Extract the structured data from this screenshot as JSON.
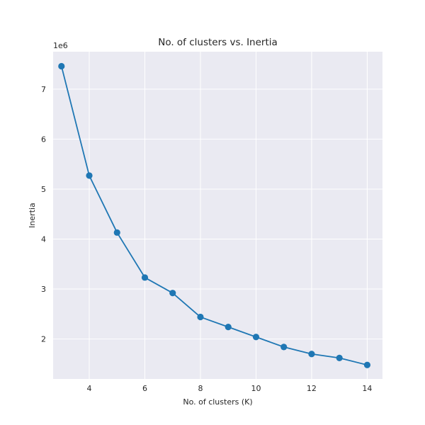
{
  "chart_data": {
    "type": "line",
    "title": "No. of clusters vs. Inertia",
    "xlabel": "No. of clusters (K)",
    "ylabel": "Inertia",
    "y_offset_label": "1e6",
    "x": [
      3,
      4,
      5,
      6,
      7,
      8,
      9,
      10,
      11,
      12,
      13,
      14
    ],
    "series": [
      {
        "values": [
          7.46,
          5.27,
          4.13,
          3.23,
          2.92,
          2.44,
          2.24,
          2.04,
          1.84,
          1.7,
          1.62,
          1.48
        ]
      }
    ],
    "xlim": [
      2.7,
      14.55
    ],
    "ylim": [
      1.2,
      7.75
    ],
    "x_ticks": [
      4,
      6,
      8,
      10,
      12,
      14
    ],
    "y_ticks": [
      2,
      3,
      4,
      5,
      6,
      7
    ],
    "grid": true,
    "marker": "circle",
    "colors": {
      "line": "#1f77b4",
      "plot_bg": "#eaeaf2",
      "grid": "#ffffff"
    }
  }
}
